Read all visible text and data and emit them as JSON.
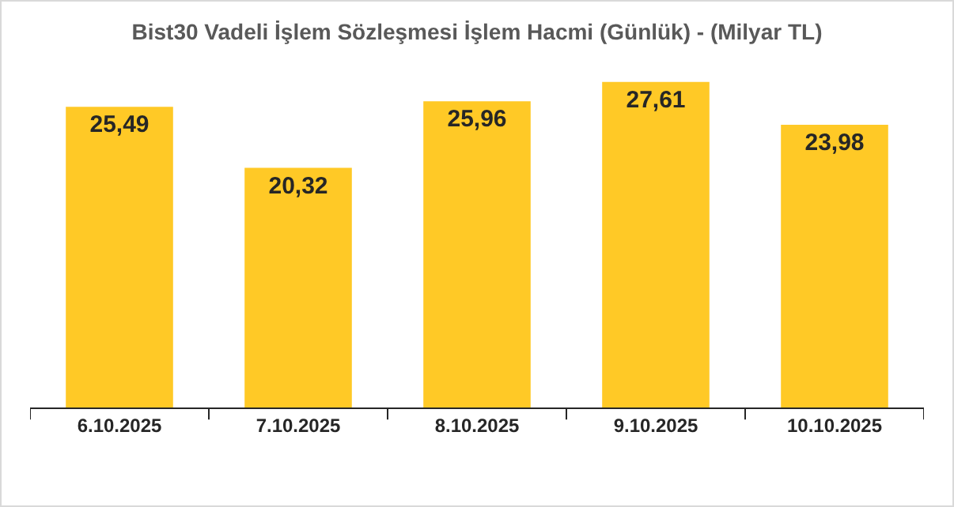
{
  "chart_data": {
    "type": "bar",
    "title": "Bist30 Vadeli İşlem Sözleşmesi İşlem Hacmi (Günlük) - (Milyar TL)",
    "categories": [
      "6.10.2025",
      "7.10.2025",
      "8.10.2025",
      "9.10.2025",
      "10.10.2025"
    ],
    "values": [
      25.49,
      20.32,
      25.96,
      27.61,
      23.98
    ],
    "value_labels": [
      "25,49",
      "20,32",
      "25,96",
      "27,61",
      "23,98"
    ],
    "color": "#ffc926"
  }
}
